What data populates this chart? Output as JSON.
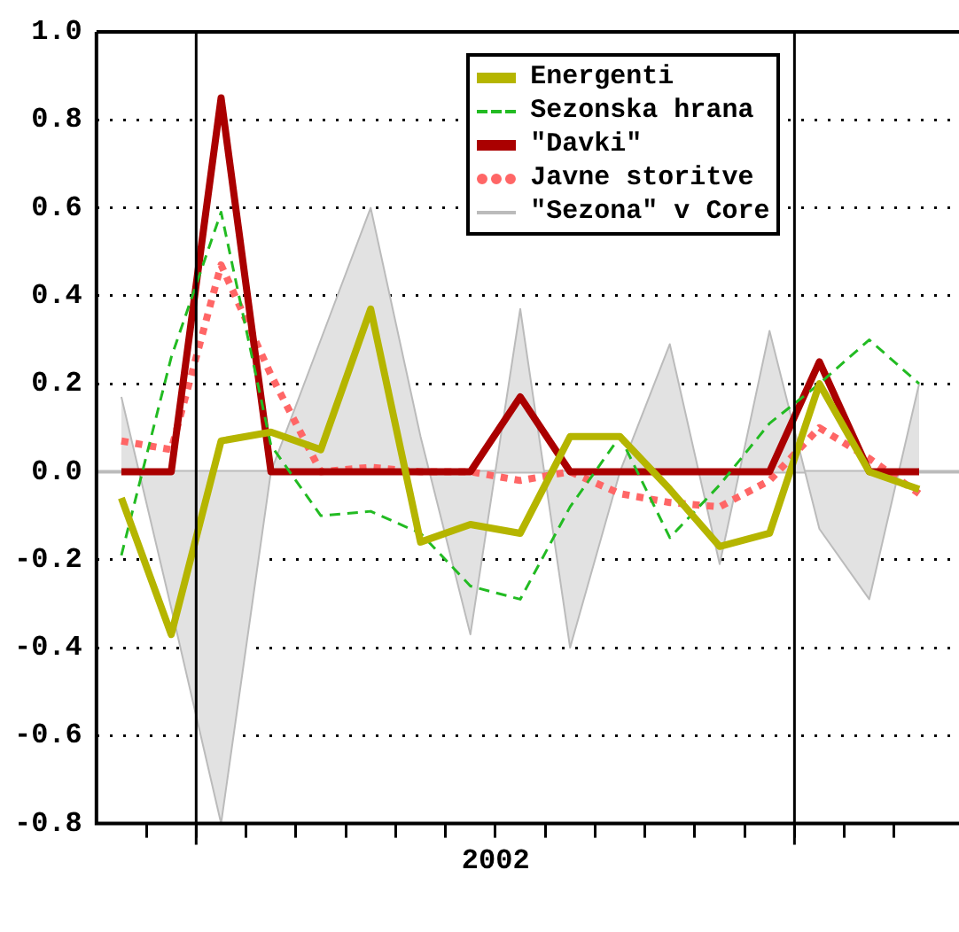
{
  "chart_data": {
    "type": "line",
    "categories": [
      null,
      null,
      null,
      null,
      null,
      null,
      null,
      null,
      null,
      null,
      null,
      null,
      null,
      null,
      null,
      null,
      null
    ],
    "series": [
      {
        "name": "Energenti",
        "type": "line",
        "color": "#b5b500",
        "line_style": "solid",
        "values": [
          -0.06,
          -0.37,
          0.07,
          0.09,
          0.05,
          0.37,
          -0.16,
          -0.12,
          -0.14,
          0.08,
          0.08,
          -0.04,
          -0.17,
          -0.14,
          0.2,
          0.0,
          -0.04
        ]
      },
      {
        "name": "Sezonska hrana",
        "type": "line",
        "color": "#22bb22",
        "line_style": "dashed",
        "values": [
          -0.19,
          0.26,
          0.59,
          0.06,
          -0.1,
          -0.09,
          -0.14,
          -0.26,
          -0.29,
          -0.08,
          0.08,
          -0.15,
          -0.03,
          0.11,
          0.2,
          0.3,
          0.2
        ]
      },
      {
        "name": "\"Davki\"",
        "type": "line",
        "color": "#aa0000",
        "line_style": "solid",
        "values": [
          0,
          0,
          0.85,
          0,
          0,
          0,
          0,
          0,
          0.17,
          0,
          0,
          0,
          0,
          0,
          0.25,
          0,
          0
        ]
      },
      {
        "name": "Javne storitve",
        "type": "line",
        "color": "#ff6666",
        "line_style": "dotted",
        "values": [
          0.07,
          0.05,
          0.47,
          0.22,
          0.0,
          0.01,
          0.0,
          0.0,
          -0.02,
          0.0,
          -0.05,
          -0.07,
          -0.08,
          -0.02,
          0.1,
          0.03,
          -0.05
        ]
      },
      {
        "name": "\"Sezona\" v Core",
        "type": "area",
        "color": "#bbbbbb",
        "values": [
          0.17,
          -0.31,
          -0.8,
          0.0,
          0.3,
          0.6,
          0.08,
          -0.37,
          0.37,
          -0.4,
          0.0,
          0.29,
          -0.21,
          0.32,
          -0.13,
          -0.29,
          0.2
        ]
      }
    ],
    "annotations": [
      "2002"
    ],
    "ylim": [
      -0.8,
      1.0
    ],
    "yticks": [
      {
        "value": -0.8,
        "label": "-0.8"
      },
      {
        "value": -0.6,
        "label": "-0.6"
      },
      {
        "value": -0.4,
        "label": "-0.4"
      },
      {
        "value": -0.2,
        "label": "-0.2"
      },
      {
        "value": 0,
        "label": "0.0"
      },
      {
        "value": 0.2,
        "label": "0.2"
      },
      {
        "value": 0.4,
        "label": "0.4"
      },
      {
        "value": 0.6,
        "label": "0.6"
      },
      {
        "value": 0.8,
        "label": "0.8"
      },
      {
        "value": 1.0,
        "label": "1.0"
      }
    ],
    "grid": "y",
    "legend": "top right",
    "marker": "none"
  }
}
